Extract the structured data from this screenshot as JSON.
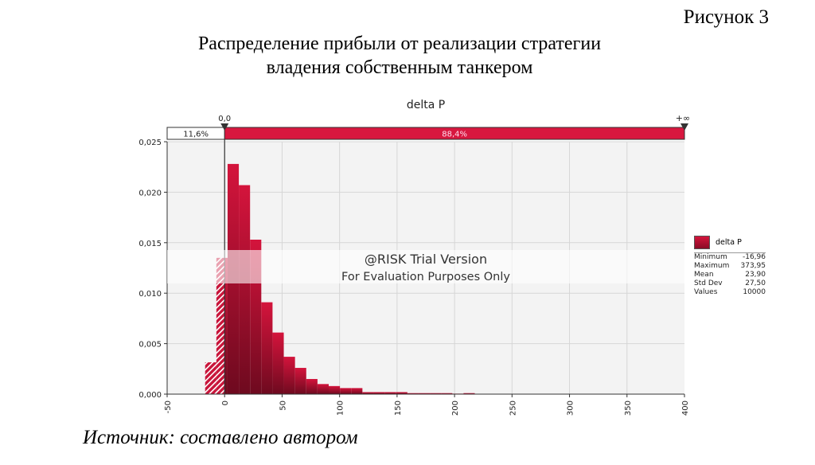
{
  "figure_label": "Рисунок 3",
  "title_lines": [
    "Распределение прибыли от реализации стратегии",
    "владения собственным танкером"
  ],
  "source": "Источник: составлено автором",
  "colors": {
    "bar_top": "#d4143c",
    "bar_bottom": "#6e0a1f",
    "band": "#d8173f",
    "grid": "#d6d6d6",
    "plot_bg": "#f3f3f3"
  },
  "chart_data": {
    "type": "bar",
    "title": "delta P",
    "xlim": [
      -50,
      400
    ],
    "ylim": [
      0,
      0.025
    ],
    "xticks": [
      -50,
      0,
      50,
      100,
      150,
      200,
      250,
      300,
      350,
      400
    ],
    "xtick_labels": [
      "-50",
      "0",
      "50",
      "100",
      "150",
      "200",
      "250",
      "300",
      "350",
      "400"
    ],
    "yticks": [
      0,
      0.005,
      0.01,
      0.015,
      0.02,
      0.025
    ],
    "ytick_labels": [
      "0,000",
      "0,005",
      "0,010",
      "0,015",
      "0,020",
      "0,025"
    ],
    "grid": true,
    "bin_start": -16.96,
    "bin_width": 9.773,
    "values": [
      0.00315,
      0.0135,
      0.0228,
      0.0207,
      0.0153,
      0.0091,
      0.0061,
      0.0037,
      0.0026,
      0.0015,
      0.001,
      0.0008,
      0.0006,
      0.0006,
      0.0002,
      0.0002,
      0.0002,
      0.0002,
      0.0001,
      0.0001,
      0.0001,
      0.0001,
      5e-05,
      0.0001,
      3e-05,
      3e-05,
      3e-05,
      3e-05,
      2e-05,
      2e-05,
      2e-05,
      2e-05,
      2e-05,
      2e-05,
      2e-05,
      2e-05,
      2e-05,
      2e-05,
      2e-05,
      2e-05
    ],
    "delimiters": {
      "left_label": "0,0",
      "right_label": "+∞",
      "left_value": 0,
      "left_pct": "11,6%",
      "right_pct": "88,4%"
    },
    "legend": {
      "name": "delta P",
      "placement": "right"
    },
    "stats": [
      {
        "label": "Minimum",
        "value": "-16,96"
      },
      {
        "label": "Maximum",
        "value": "373,95"
      },
      {
        "label": "Mean",
        "value": "23,90"
      },
      {
        "label": "Std Dev",
        "value": "27,50"
      },
      {
        "label": "Values",
        "value": "10000"
      }
    ],
    "watermark": [
      "@RISK Trial Version",
      "For Evaluation Purposes Only"
    ]
  }
}
